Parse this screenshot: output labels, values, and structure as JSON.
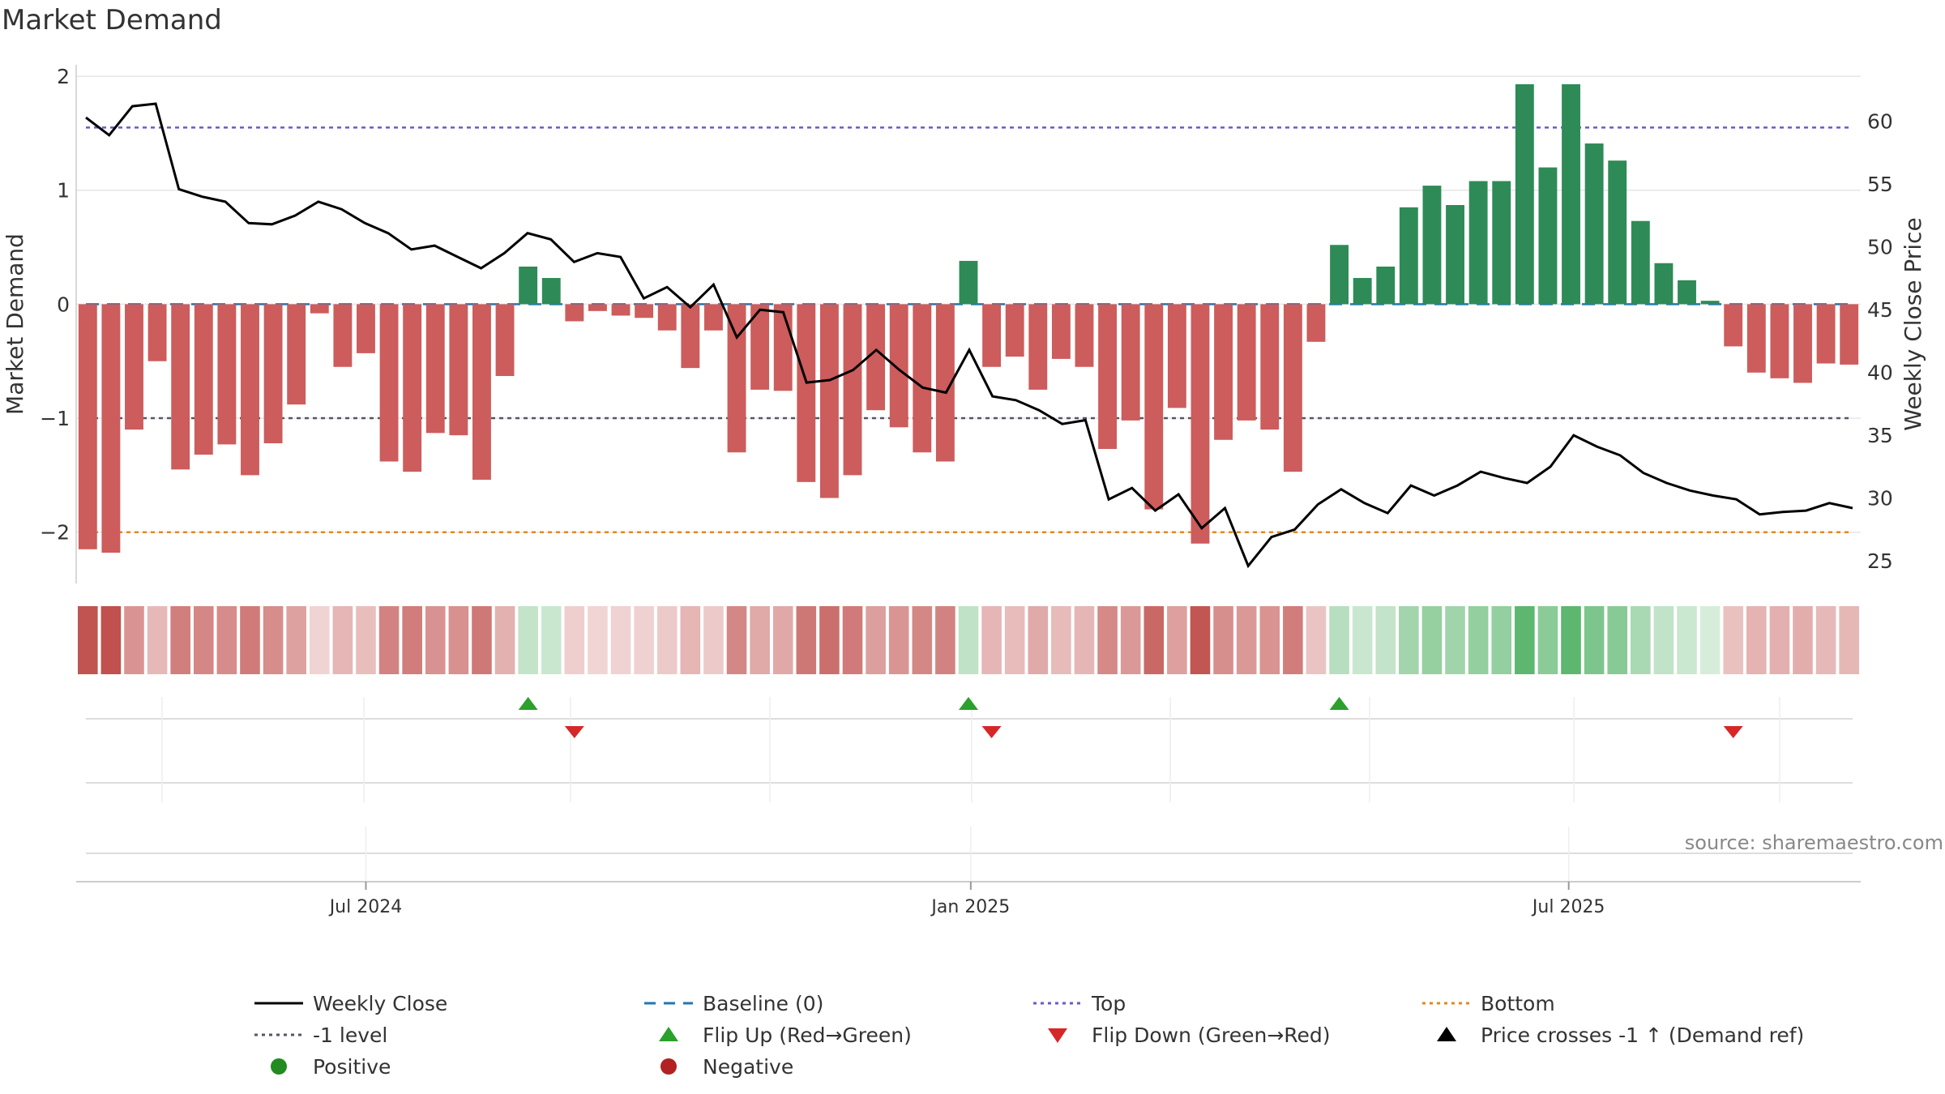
{
  "chart_data": {
    "type": "bar",
    "title": "Market Demand",
    "ylabel": "Market Demand",
    "y2label": "Weekly Close Price",
    "ylim": [
      -2.45,
      2.1
    ],
    "y2lim": [
      23.2,
      64.5
    ],
    "yticks": [
      -2,
      -1,
      0,
      1,
      2
    ],
    "ytick_labels": [
      "−2",
      "−1",
      "0",
      "1",
      "2"
    ],
    "y2ticks": [
      25,
      30,
      35,
      40,
      45,
      50,
      55,
      60
    ],
    "top_level": 1.55,
    "minus1_level": -1,
    "bottom_level": -2,
    "x_tick_labels": [
      "Jul 2024",
      "Jan 2025",
      "Jul 2025"
    ],
    "x_tick_index": [
      12.5,
      38.6,
      64.4
    ],
    "demand": [
      -2.15,
      -2.18,
      -1.1,
      -0.5,
      -1.45,
      -1.32,
      -1.23,
      -1.5,
      -1.22,
      -0.88,
      -0.08,
      -0.55,
      -0.43,
      -1.38,
      -1.47,
      -1.13,
      -1.15,
      -1.54,
      -0.63,
      0.33,
      0.23,
      -0.15,
      -0.06,
      -0.1,
      -0.12,
      -0.23,
      -0.56,
      -0.23,
      -1.3,
      -0.75,
      -0.76,
      -1.56,
      -1.7,
      -1.5,
      -0.93,
      -1.08,
      -1.3,
      -1.38,
      0.38,
      -0.55,
      -0.46,
      -0.75,
      -0.48,
      -0.55,
      -1.27,
      -1.02,
      -1.8,
      -0.91,
      -2.1,
      -1.19,
      -1.02,
      -1.1,
      -1.47,
      -0.33,
      0.52,
      0.23,
      0.33,
      0.85,
      1.04,
      0.87,
      1.08,
      1.08,
      1.93,
      1.2,
      1.93,
      1.41,
      1.26,
      0.73,
      0.36,
      0.21,
      0.03,
      -0.37,
      -0.6,
      -0.65,
      -0.69,
      -0.52,
      -0.53
    ],
    "weekly_close": [
      60.3,
      58.9,
      61.2,
      61.4,
      54.6,
      54.0,
      53.6,
      51.9,
      51.8,
      52.5,
      53.6,
      53.0,
      51.9,
      51.1,
      49.8,
      50.1,
      49.2,
      48.3,
      49.5,
      51.1,
      50.6,
      48.8,
      49.5,
      49.2,
      45.9,
      46.8,
      45.2,
      47.0,
      42.8,
      45.0,
      44.8,
      39.2,
      39.4,
      40.2,
      41.8,
      40.2,
      38.8,
      38.4,
      41.8,
      38.1,
      37.8,
      37.0,
      35.9,
      36.2,
      29.9,
      30.8,
      29.0,
      30.3,
      27.6,
      29.2,
      24.6,
      26.9,
      27.5,
      29.5,
      30.7,
      29.6,
      28.8,
      31.0,
      30.2,
      31.0,
      32.1,
      31.6,
      31.2,
      32.5,
      35.0,
      34.1,
      33.4,
      32.0,
      31.2,
      30.6,
      30.2,
      29.9,
      28.7,
      28.9,
      29.0,
      29.6,
      29.2
    ],
    "flip_up_index": [
      19,
      38,
      54
    ],
    "flip_down_index": [
      21,
      39,
      71
    ],
    "source": "source: sharemaestro.com",
    "legend": [
      {
        "label": "Weekly Close",
        "kind": "line",
        "color": "#000000"
      },
      {
        "label": "Baseline (0)",
        "kind": "dash",
        "color": "#1f77b4"
      },
      {
        "label": "Top",
        "kind": "dot",
        "color": "#6a5acd"
      },
      {
        "label": "Bottom",
        "kind": "dot",
        "color": "#e08a1e"
      },
      {
        "label": "-1 level",
        "kind": "dot",
        "color": "#555566"
      },
      {
        "label": "Flip Up (Red→Green)",
        "kind": "tri-up",
        "color": "#2ca02c"
      },
      {
        "label": "Flip Down (Green→Red)",
        "kind": "tri-down",
        "color": "#d62728"
      },
      {
        "label": "Price crosses -1 ↑ (Demand ref)",
        "kind": "tri-up",
        "color": "#000000"
      },
      {
        "label": "Positive",
        "kind": "circle",
        "color": "#228b22"
      },
      {
        "label": "Negative",
        "kind": "circle",
        "color": "#b22222"
      }
    ],
    "colors": {
      "positive_bar": "#2e8b57",
      "negative_bar": "#cd5c5c",
      "heat_positive": "#4caf60",
      "heat_negative": "#c0504d",
      "grid": "#e6e6e6",
      "axis": "#cccccc"
    }
  }
}
